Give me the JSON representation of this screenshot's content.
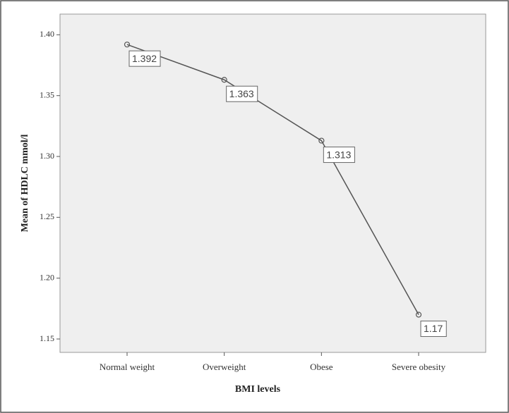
{
  "chart_data": {
    "type": "line",
    "x_label": "BMI levels",
    "y_label": "Mean of HDLC mmol/l",
    "categories": [
      "Normal weight",
      "Overweight",
      "Obese",
      "Severe obesity"
    ],
    "values": [
      1.392,
      1.363,
      1.313,
      1.17
    ],
    "color": "#555555",
    "ylim": [
      1.139,
      1.417
    ],
    "yticks": [
      {
        "value": 1.4,
        "label": "1.40"
      },
      1.35,
      {
        "value": 1.3,
        "label": "1.30"
      },
      1.25,
      {
        "value": 1.2,
        "label": "1.20"
      },
      1.15
    ]
  }
}
